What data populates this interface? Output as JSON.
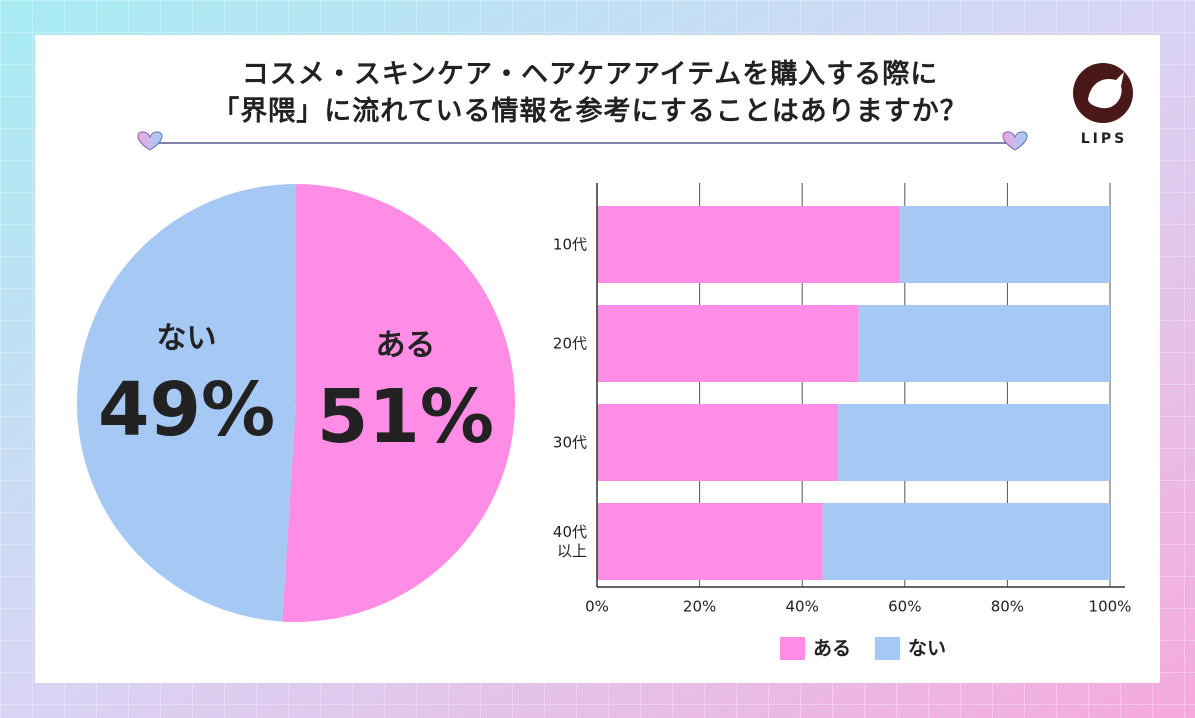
{
  "brand": "LIPS",
  "chart_data": [
    {
      "type": "pie",
      "title": "コスメ・スキンケア・ヘアケアアイテムを購入する際に\n「界隈」に流れている情報を参考にすることはありますか？",
      "categories": [
        "ある",
        "ない"
      ],
      "values": [
        51,
        49
      ],
      "value_labels": [
        "51%",
        "49%"
      ],
      "colors": [
        "#ff8de6",
        "#a5c8f5"
      ]
    },
    {
      "type": "stacked-barh",
      "categories": [
        "10代",
        "20代",
        "30代",
        "40代\n以上"
      ],
      "series": [
        {
          "name": "ある",
          "color": "#ff8de6",
          "values": [
            59,
            51,
            47,
            44
          ]
        },
        {
          "name": "ない",
          "color": "#a5c8f5",
          "values": [
            41,
            49,
            53,
            56
          ]
        }
      ],
      "xlim": [
        0,
        100
      ],
      "xticks": [
        {
          "value": 0,
          "label": "0%"
        },
        {
          "value": 20,
          "label": "20%"
        },
        {
          "value": 40,
          "label": "40%"
        },
        {
          "value": 60,
          "label": "60%"
        },
        {
          "value": 80,
          "label": "80%"
        },
        {
          "value": 100,
          "label": "100%"
        }
      ],
      "grid": true,
      "legend": "bottom"
    }
  ]
}
